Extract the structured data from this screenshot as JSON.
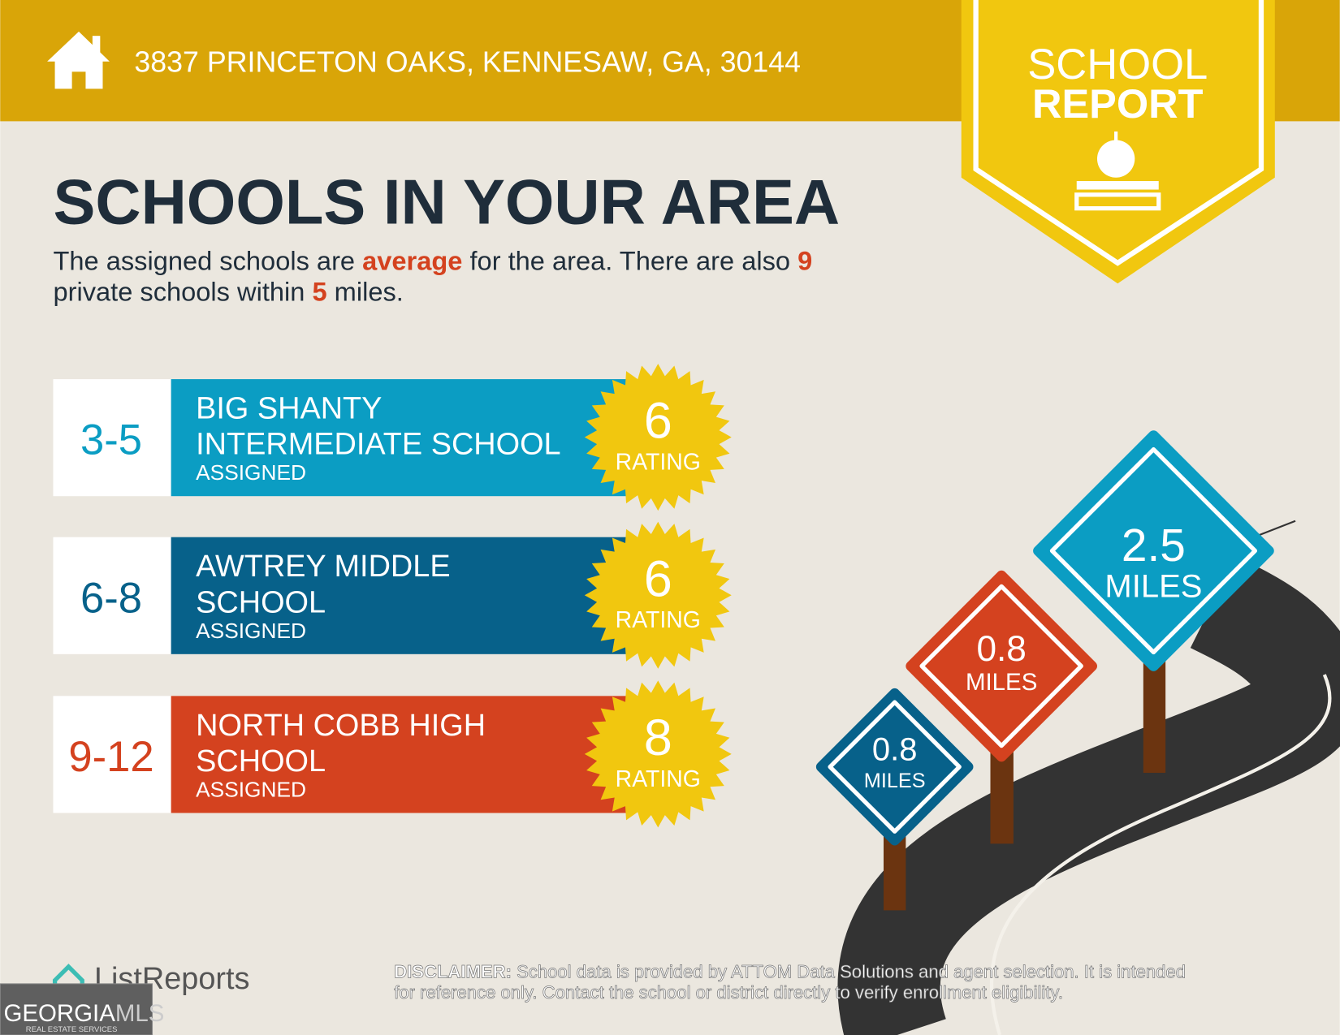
{
  "header": {
    "address": "3837 PRINCETON OAKS, KENNESAW, GA, 30144"
  },
  "badge": {
    "line1": "SCHOOL",
    "line2": "REPORT"
  },
  "title": "SCHOOLS IN YOUR AREA",
  "summary": {
    "line1": [
      "The assigned schools are ",
      "average",
      " for the area. There are also ",
      "9"
    ],
    "line2": [
      "private schools within ",
      "5",
      " miles."
    ]
  },
  "schools": [
    {
      "grades": "3-5",
      "name_lines": [
        "BIG SHANTY",
        "INTERMEDIATE SCHOOL"
      ],
      "status": "ASSIGNED",
      "rating": "6",
      "rating_label": "RATING"
    },
    {
      "grades": "6-8",
      "name_lines": [
        "AWTREY MIDDLE",
        "SCHOOL"
      ],
      "status": "ASSIGNED",
      "rating": "6",
      "rating_label": "RATING"
    },
    {
      "grades": "9-12",
      "name_lines": [
        "NORTH COBB HIGH",
        "SCHOOL"
      ],
      "status": "ASSIGNED",
      "rating": "8",
      "rating_label": "RATING"
    }
  ],
  "signs": [
    {
      "distance": "2.5",
      "unit": "MILES"
    },
    {
      "distance": "0.8",
      "unit": "MILES"
    },
    {
      "distance": "0.8",
      "unit": "MILES"
    }
  ],
  "footer": {
    "brand": "ListReports",
    "disclaimer_label": "DISCLAIMER:",
    "disclaimer_line1": " School data is provided by ATTOM Data Solutions and agent selection. It is intended",
    "disclaimer_line2": "for reference only. Contact the school or district directly to verify enrollment eligibility.",
    "mls_1": "GEORGIA",
    "mls_2": "MLS",
    "mls_3": "REAL ESTATE SERVICES"
  }
}
